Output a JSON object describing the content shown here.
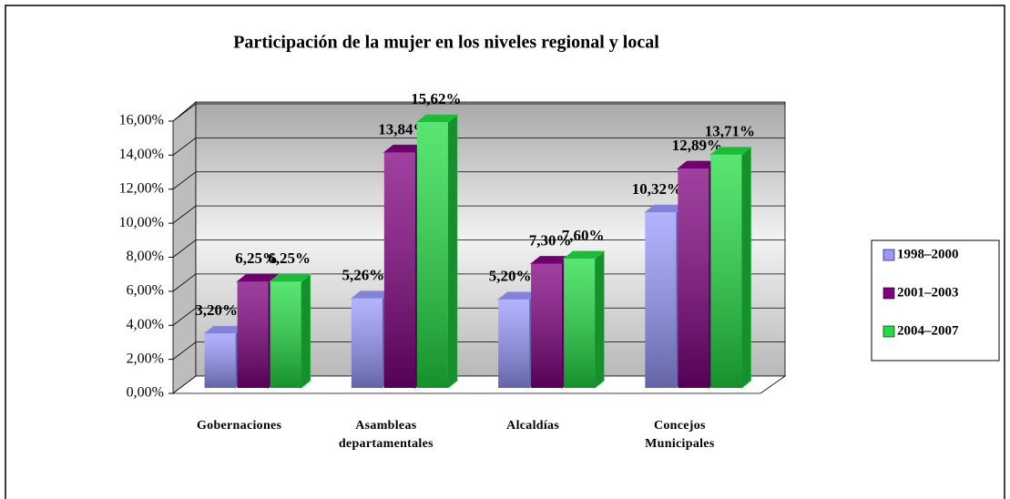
{
  "chart_data": {
    "type": "bar3d",
    "title": "Participación de la mujer en los niveles regional y local",
    "categories": [
      "Gobernaciones",
      "Asambleas departamentales",
      "Alcaldías",
      "Concejos Municipales"
    ],
    "series": [
      {
        "name": "1998–2000",
        "color": "#9999ff",
        "values": [
          3.2,
          5.26,
          5.2,
          10.32
        ],
        "value_labels": [
          "3,20%",
          "5,26%",
          "5,20%",
          "10,32%"
        ]
      },
      {
        "name": "2001–2003",
        "color": "#800080",
        "values": [
          6.25,
          13.84,
          7.3,
          12.89
        ],
        "value_labels": [
          "6,25%",
          "13,84%",
          "7,30%",
          "12,89%"
        ]
      },
      {
        "name": "2004–2007",
        "color": "#22dd44",
        "values": [
          6.25,
          15.62,
          7.6,
          13.71
        ],
        "value_labels": [
          "6,25%",
          "15,62%",
          "7,60%",
          "13,71%"
        ]
      }
    ],
    "ylim": [
      0,
      16
    ],
    "yticks": [
      {
        "value": 0,
        "label": "0,00%"
      },
      {
        "value": 2,
        "label": "2,00%"
      },
      {
        "value": 4,
        "label": "4,00%"
      },
      {
        "value": 6,
        "label": "6,00%"
      },
      {
        "value": 8,
        "label": "8,00%"
      },
      {
        "value": 10,
        "label": "10,00%"
      },
      {
        "value": 12,
        "label": "12,00%"
      },
      {
        "value": 14,
        "label": "14,00%"
      },
      {
        "value": 16,
        "label": "16,00%"
      }
    ],
    "grid": true,
    "legend": "right"
  }
}
